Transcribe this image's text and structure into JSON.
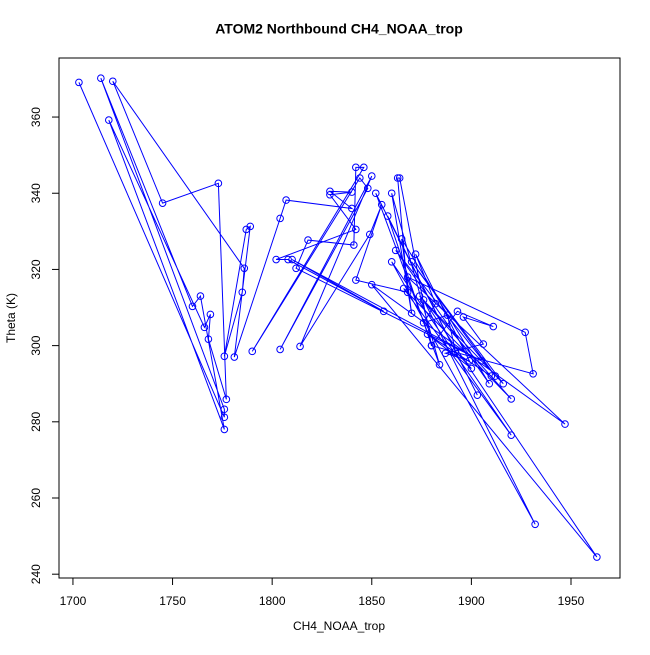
{
  "chart_data": {
    "type": "line",
    "title": "ATOM2 Northbound CH4_NOAA_trop",
    "xlabel": "CH4_NOAA_trop",
    "ylabel": "Theta (K)",
    "color": "#0000ff",
    "markers": true,
    "grid": false,
    "xlim": [
      1693,
      1974.6
    ],
    "xticks": [
      1700,
      1750,
      1800,
      1850,
      1900,
      1950
    ],
    "ylim": [
      239,
      375.5
    ],
    "yticks": [
      240,
      260,
      280,
      300,
      320,
      340,
      360
    ],
    "x": [
      1703,
      1776,
      1776,
      1714,
      1760,
      1764,
      1776,
      1718,
      1766,
      1769,
      1768,
      1777,
      1773,
      1745,
      1720,
      1786,
      1785,
      1776,
      1787,
      1789,
      1781,
      1804,
      1807,
      1840,
      1829,
      1840,
      1829,
      1842,
      1802,
      1808,
      1856,
      1810,
      1905,
      1812,
      1818,
      1841,
      1842,
      1846,
      1790,
      1844,
      1848,
      1804,
      1850,
      1814,
      1849,
      1855,
      1842,
      1868,
      1863,
      1864,
      1880,
      1858,
      1903,
      1852,
      1884,
      1860,
      1870,
      1865,
      1909,
      1862,
      1912,
      1870,
      1916,
      1874,
      1920,
      1866,
      1920,
      1860,
      1932,
      1876,
      1963,
      1850,
      1947,
      1868,
      1927,
      1931,
      1880,
      1893,
      1911,
      1896,
      1906,
      1887,
      1899,
      1872,
      1882,
      1876,
      1888,
      1892,
      1900,
      1878,
      1910
    ],
    "values": [
      369.1,
      281.2,
      283.3,
      370.2,
      310.3,
      313,
      278,
      359.2,
      304.8,
      308.2,
      301.7,
      285.9,
      342.6,
      337.4,
      369.4,
      320.3,
      314,
      297.2,
      330.5,
      331.3,
      297,
      333.4,
      338.2,
      336,
      340.5,
      340.3,
      339.6,
      330.5,
      322.6,
      322.6,
      309,
      322.6,
      296,
      320.3,
      327.7,
      326.4,
      346.8,
      346.8,
      298.5,
      344,
      341.3,
      299,
      344.5,
      299.8,
      329.2,
      337,
      317.2,
      314,
      344,
      344,
      300,
      334,
      287,
      340,
      295,
      340,
      308.5,
      328,
      290,
      325,
      292,
      322,
      290,
      313,
      286,
      315,
      276.5,
      322,
      253.1,
      312,
      244.5,
      316,
      279.4,
      318,
      303.5,
      292.6,
      300,
      309,
      305,
      307.5,
      300.4,
      298,
      296,
      324,
      311,
      306,
      308,
      298.5,
      294,
      303,
      292
    ]
  }
}
